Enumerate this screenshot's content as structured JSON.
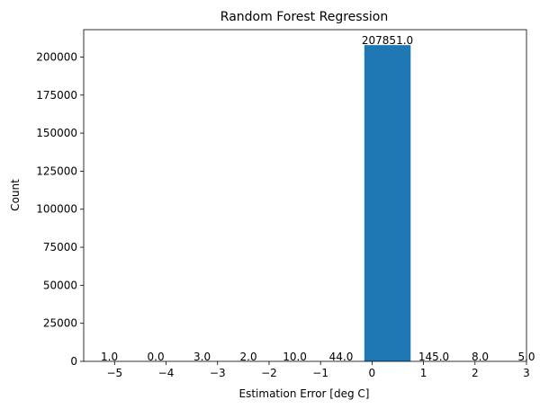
{
  "chart_data": {
    "type": "bar",
    "title": "Random Forest Regression",
    "xlabel": "Estimation Error [deg C]",
    "ylabel": "Count",
    "bar_color": "#1f77b4",
    "bins": [
      {
        "x": -5.1,
        "value": 1,
        "label": "1.0"
      },
      {
        "x": -4.2,
        "value": 0,
        "label": "0.0"
      },
      {
        "x": -3.3,
        "value": 3,
        "label": "3.0"
      },
      {
        "x": -2.4,
        "value": 2,
        "label": "2.0"
      },
      {
        "x": -1.5,
        "value": 10,
        "label": "10.0"
      },
      {
        "x": -0.6,
        "value": 44,
        "label": "44.0"
      },
      {
        "x": 0.3,
        "value": 207851,
        "label": "207851.0"
      },
      {
        "x": 1.2,
        "value": 145,
        "label": "145.0"
      },
      {
        "x": 2.1,
        "value": 8,
        "label": "8.0"
      },
      {
        "x": 3.0,
        "value": 5,
        "label": "5.0"
      }
    ],
    "bar_width": 0.9,
    "visible_bar_indices": [
      6
    ],
    "xlim": [
      -5.6,
      3.0
    ],
    "ylim": [
      0,
      218000
    ],
    "xticks": [
      -5,
      -4,
      -3,
      -2,
      -1,
      0,
      1,
      2,
      3
    ],
    "xtick_labels": [
      "−5",
      "−4",
      "−3",
      "−2",
      "−1",
      "0",
      "1",
      "2",
      "3"
    ],
    "yticks": [
      0,
      25000,
      50000,
      75000,
      100000,
      125000,
      150000,
      175000,
      200000
    ],
    "ytick_labels": [
      "0",
      "25000",
      "50000",
      "75000",
      "100000",
      "125000",
      "150000",
      "175000",
      "200000"
    ],
    "grid": false,
    "legend": "none"
  }
}
